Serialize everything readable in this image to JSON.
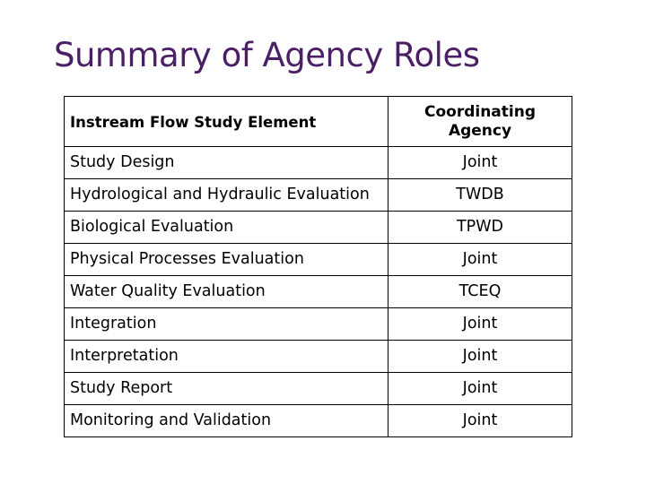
{
  "title": "Summary of Agency Roles",
  "table": {
    "headers": [
      "Instream Flow Study Element",
      "Coordinating Agency"
    ],
    "rows": [
      {
        "element": "Study Design",
        "agency": "Joint"
      },
      {
        "element": "Hydrological and Hydraulic Evaluation",
        "agency": "TWDB"
      },
      {
        "element": "Biological Evaluation",
        "agency": "TPWD"
      },
      {
        "element": "Physical Processes Evaluation",
        "agency": "Joint"
      },
      {
        "element": "Water Quality Evaluation",
        "agency": "TCEQ"
      },
      {
        "element": "Integration",
        "agency": "Joint"
      },
      {
        "element": "Interpretation",
        "agency": "Joint"
      },
      {
        "element": "Study Report",
        "agency": "Joint"
      },
      {
        "element": "Monitoring and Validation",
        "agency": "Joint"
      }
    ]
  },
  "colors": {
    "title": "#4b1f66",
    "text": "#000000",
    "border": "#000000",
    "background": "#ffffff"
  }
}
